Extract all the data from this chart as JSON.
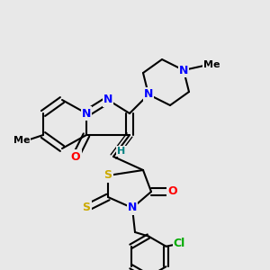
{
  "bg_color": "#e8e8e8",
  "bond_color": "#000000",
  "bond_width": 1.5,
  "atom_colors": {
    "C": "#000000",
    "N": "#0000ff",
    "O": "#ff0000",
    "S": "#ccaa00",
    "Cl": "#00aa00",
    "H": "#008080"
  },
  "font_size": 9,
  "fig_size": [
    3.0,
    3.0
  ],
  "dpi": 100
}
